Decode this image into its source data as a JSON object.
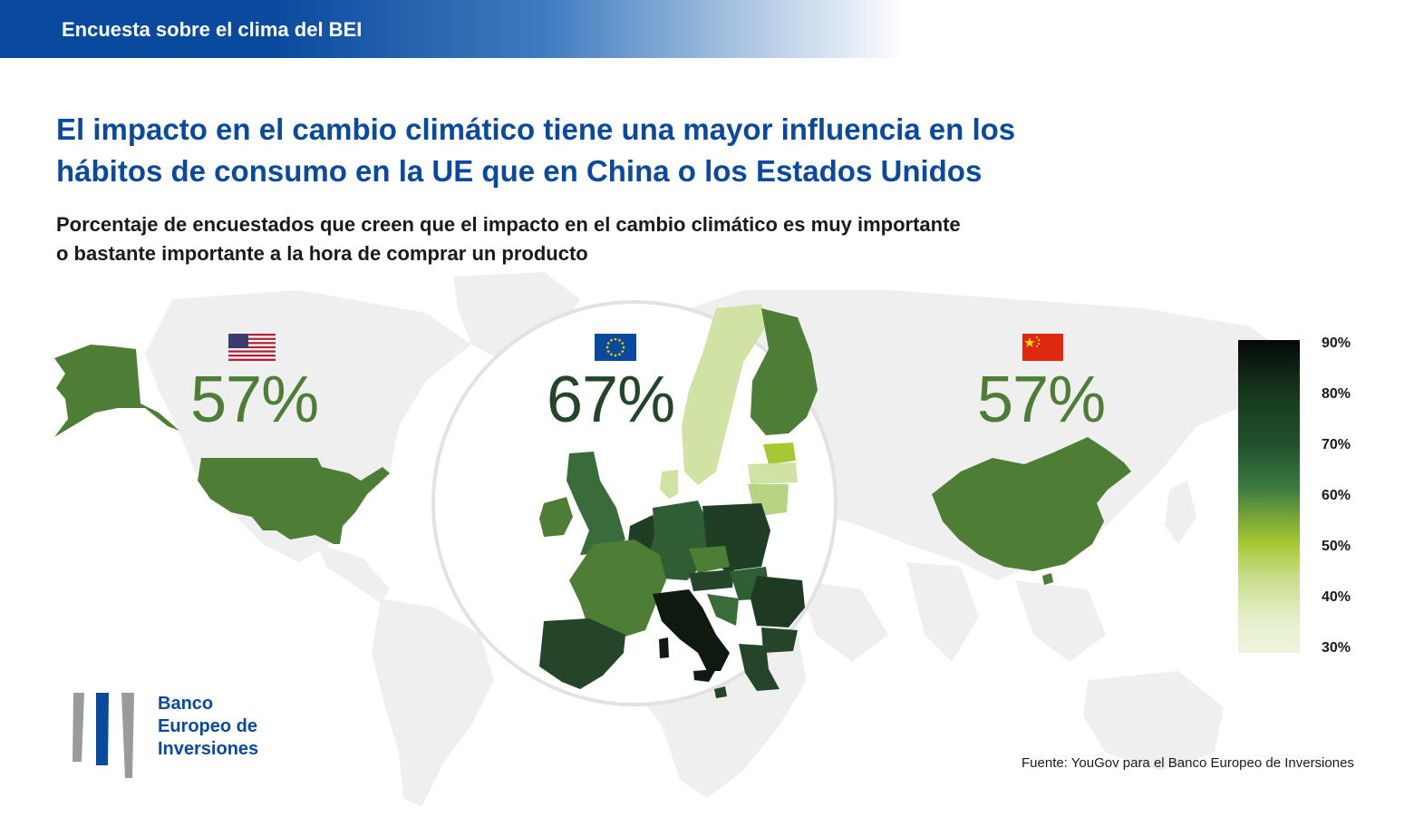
{
  "header": {
    "title": "Encuesta sobre el clima del BEI"
  },
  "headline": {
    "line1": "El impacto en el cambio climático tiene una mayor influencia en los",
    "line2": "hábitos de consumo en la UE que en China o los Estados Unidos"
  },
  "subtitle": {
    "line1": "Porcentaje de encuestados que creen que el impacto en el cambio climático es muy importante",
    "line2": "o bastante importante a la hora de comprar un producto"
  },
  "regions": [
    {
      "name": "Estados Unidos",
      "flag": "us-flag-icon",
      "value": "57%",
      "color": "#4e7d35"
    },
    {
      "name": "UE",
      "flag": "eu-flag-icon",
      "value": "67%",
      "color": "#24452a"
    },
    {
      "name": "China",
      "flag": "cn-flag-icon",
      "value": "57%",
      "color": "#4e7d35"
    }
  ],
  "legend": {
    "ticks": [
      "90%",
      "80%",
      "70%",
      "60%",
      "50%",
      "40%",
      "30%"
    ],
    "range": [
      30,
      90
    ]
  },
  "logo": {
    "line1": "Banco",
    "line2": "Europeo de",
    "line3": "Inversiones"
  },
  "source": "Fuente: YouGov para el Banco Europeo de Inversiones",
  "colors": {
    "brand_blue": "#0a4a9e",
    "map_green": "#4e7d35",
    "dark_green": "#24452a",
    "world_gray": "#eeeeee"
  }
}
